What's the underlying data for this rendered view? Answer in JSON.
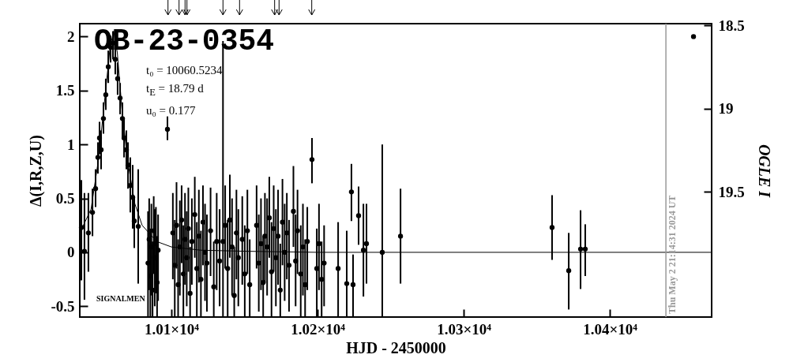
{
  "chart_data": {
    "type": "scatter",
    "title": "OB-23-0354",
    "xlabel": "HJD - 2450000",
    "ylabel": "Δ(I,R,Z,U)",
    "y2label": "OGLE I",
    "annotations": [
      "t₀ = 10060.5234",
      "t$_{E}$ = 18.79 d",
      "u₀ = 0.177",
      "SIGNALMEN",
      {
        "text": "Thu May  2 21:14:31 2024 UT",
        "x": 10438.4,
        "y": -0.6
      }
    ],
    "xlim": [
      10037.3,
      10469.7
    ],
    "xticks": [
      {
        "value": 10100,
        "label": "1.01×10⁴"
      },
      {
        "value": 10200,
        "label": "1.02×10⁴"
      },
      {
        "value": 10300,
        "label": "1.03×10⁴"
      },
      {
        "value": 10400,
        "label": "1.04×10⁴"
      }
    ],
    "ylim": [
      -0.6,
      2.12
    ],
    "yticks": [
      -0.5,
      0,
      0.5,
      1,
      1.5,
      2
    ],
    "y2lim": [
      20.25,
      18.49
    ],
    "y2ticks": [
      18.5,
      19,
      19.5
    ],
    "marker": "circle",
    "grid": false,
    "ref_lines": [
      {
        "axis": "x",
        "value": 10438.4,
        "color": "#999999"
      }
    ],
    "series": [
      {
        "type": "scatter",
        "color": "#000000",
        "x": [
          10038.4,
          10040.5,
          10043.2,
          10046.0,
          10048.1,
          10049.7,
          10050.8,
          10051.9,
          10053.5,
          10055.1,
          10056.8,
          10058.4,
          10060.0,
          10061.6,
          10063.2,
          10064.9,
          10066.5,
          10067.6,
          10069.2,
          10070.3,
          10071.9,
          10073.5,
          10074.6,
          10077.3,
          10084.0,
          10084.8,
          10085.6,
          10086.3,
          10087.1,
          10087.9,
          10088.6,
          10089.4,
          10090.2,
          10090.9,
          10097.3,
          10101.0,
          10102.3,
          10103.5,
          10104.6,
          10105.8,
          10107.0,
          10108.2,
          10109.3,
          10110.5,
          10111.6,
          10112.8,
          10114.0,
          10116.0,
          10117.4,
          10118.8,
          10120.2,
          10121.6,
          10123.0,
          10124.3,
          10126.8,
          10129.0,
          10131.0,
          10133.0,
          10135.3,
          10136.8,
          10138.5,
          10140.0,
          10141.5,
          10143.0,
          10144.5,
          10145.8,
          10148.5,
          10150.2,
          10152.0,
          10153.6,
          10158.3,
          10159.8,
          10161.3,
          10162.8,
          10164.0,
          10165.5,
          10167.0,
          10168.5,
          10170.0,
          10171.5,
          10173.0,
          10174.5,
          10176.0,
          10177.5,
          10179.0,
          10180.5,
          10183.5,
          10185.0,
          10186.3,
          10188.5,
          10190.0,
          10191.5,
          10193.0,
          10196.2,
          10199.5,
          10201.0,
          10202.8,
          10204.5,
          10214.1,
          10220.0,
          10223.2,
          10224.3,
          10228.1,
          10231.4,
          10233.5,
          10244.3,
          10256.8,
          10360.5,
          10371.9,
          10380.0,
          10383.2
        ],
        "values": [
          0.23,
          0.01,
          0.18,
          0.37,
          0.59,
          0.88,
          1.06,
          0.95,
          1.24,
          1.46,
          1.72,
          1.9,
          1.94,
          1.79,
          1.61,
          1.43,
          1.24,
          1.06,
          0.95,
          0.81,
          0.62,
          0.51,
          0.29,
          0.24,
          -0.1,
          0.12,
          -0.22,
          0.05,
          -0.35,
          0.2,
          -0.05,
          0.08,
          -0.28,
          0.02,
          1.14,
          0.18,
          -0.12,
          0.25,
          -0.3,
          0.05,
          0.3,
          -0.2,
          0.12,
          -0.05,
          0.22,
          -0.38,
          0.1,
          0.35,
          -0.15,
          0.15,
          -0.25,
          0.28,
          0.0,
          -0.1,
          0.2,
          -0.32,
          0.1,
          -0.08,
          0.1,
          0.25,
          -0.15,
          0.3,
          0.05,
          -0.4,
          0.18,
          -0.05,
          0.12,
          -0.2,
          0.2,
          -0.3,
          0.25,
          -0.1,
          0.08,
          -0.28,
          0.15,
          0.05,
          0.32,
          -0.18,
          0.22,
          -0.05,
          0.15,
          -0.35,
          0.28,
          0.0,
          0.18,
          -0.12,
          0.38,
          -0.08,
          0.2,
          -0.2,
          0.05,
          -0.3,
          0.1,
          0.86,
          -0.15,
          0.08,
          -0.25,
          -0.1,
          -0.15,
          -0.29,
          0.56,
          -0.3,
          0.34,
          0.02,
          0.08,
          0.0,
          0.15,
          0.23,
          -0.17,
          0.03,
          0.03
        ],
        "errors": [
          [
            -0.26,
            0.67
          ],
          [
            -0.44,
            0.55
          ],
          [
            -0.18,
            0.55
          ],
          [
            0.15,
            0.59
          ],
          [
            0.42,
            0.77
          ],
          [
            0.73,
            1.02
          ],
          [
            0.91,
            1.21
          ],
          [
            0.77,
            1.13
          ],
          [
            1.1,
            1.39
          ],
          [
            1.32,
            1.61
          ],
          [
            1.57,
            1.87
          ],
          [
            1.76,
            2.01
          ],
          [
            1.79,
            2.05
          ],
          [
            1.65,
            1.94
          ],
          [
            1.46,
            1.76
          ],
          [
            1.28,
            1.57
          ],
          [
            1.06,
            1.39
          ],
          [
            0.88,
            1.24
          ],
          [
            0.77,
            1.13
          ],
          [
            0.59,
            1.02
          ],
          [
            0.37,
            0.88
          ],
          [
            0.22,
            0.81
          ],
          [
            0.04,
            0.51
          ],
          [
            -0.29,
            0.77
          ],
          [
            -0.6,
            0.38
          ],
          [
            -0.35,
            0.5
          ],
          [
            -0.6,
            0.22
          ],
          [
            -0.4,
            0.45
          ],
          [
            -0.6,
            0.1
          ],
          [
            -0.2,
            0.52
          ],
          [
            -0.5,
            0.4
          ],
          [
            -0.38,
            0.42
          ],
          [
            -0.6,
            0.15
          ],
          [
            -0.45,
            0.35
          ],
          [
            1.04,
            1.26
          ],
          [
            -0.25,
            0.55
          ],
          [
            -0.6,
            0.3
          ],
          [
            -0.15,
            0.65
          ],
          [
            -0.6,
            0.12
          ],
          [
            -0.4,
            0.48
          ],
          [
            -0.1,
            0.62
          ],
          [
            -0.6,
            0.25
          ],
          [
            -0.3,
            0.55
          ],
          [
            -0.5,
            0.38
          ],
          [
            -0.18,
            0.6
          ],
          [
            -0.6,
            0.05
          ],
          [
            -0.3,
            0.5
          ],
          [
            -0.05,
            0.7
          ],
          [
            -0.6,
            0.28
          ],
          [
            -0.28,
            0.58
          ],
          [
            -0.6,
            0.2
          ],
          [
            -0.12,
            0.62
          ],
          [
            -0.45,
            0.45
          ],
          [
            -0.55,
            0.35
          ],
          [
            -0.22,
            0.6
          ],
          [
            -0.6,
            0.1
          ],
          [
            -0.35,
            0.55
          ],
          [
            -0.5,
            0.4
          ],
          [
            -0.6,
            1.96
          ],
          [
            -0.15,
            0.62
          ],
          [
            -0.6,
            0.3
          ],
          [
            -0.05,
            0.72
          ],
          [
            -0.4,
            0.5
          ],
          [
            -0.6,
            0.05
          ],
          [
            -0.25,
            0.58
          ],
          [
            -0.5,
            0.4
          ],
          [
            -0.3,
            0.52
          ],
          [
            -0.6,
            0.25
          ],
          [
            -0.2,
            0.58
          ],
          [
            -0.6,
            0.12
          ],
          [
            -0.15,
            0.62
          ],
          [
            -0.55,
            0.35
          ],
          [
            -0.35,
            0.5
          ],
          [
            -0.6,
            0.15
          ],
          [
            -0.28,
            0.55
          ],
          [
            -0.4,
            0.5
          ],
          [
            -0.05,
            0.7
          ],
          [
            -0.6,
            0.28
          ],
          [
            -0.18,
            0.62
          ],
          [
            -0.5,
            0.4
          ],
          [
            -0.3,
            0.58
          ],
          [
            -0.6,
            0.08
          ],
          [
            -0.12,
            0.68
          ],
          [
            -0.45,
            0.45
          ],
          [
            -0.25,
            0.55
          ],
          [
            -0.55,
            0.3
          ],
          [
            0.05,
            0.8
          ],
          [
            -0.5,
            0.35
          ],
          [
            -0.2,
            0.58
          ],
          [
            -0.6,
            0.25
          ],
          [
            -0.4,
            0.45
          ],
          [
            -0.6,
            0.12
          ],
          [
            -0.35,
            0.42
          ],
          [
            0.64,
            1.06
          ],
          [
            -0.6,
            0.22
          ],
          [
            -0.35,
            0.45
          ],
          [
            -0.6,
            0.1
          ],
          [
            -0.5,
            0.25
          ],
          [
            -0.6,
            0.28
          ],
          [
            -0.6,
            0.2
          ],
          [
            0.29,
            0.82
          ],
          [
            -0.6,
            -0.02
          ],
          [
            0.07,
            0.61
          ],
          [
            -0.41,
            0.45
          ],
          [
            -0.29,
            0.45
          ],
          [
            -0.6,
            1.0
          ],
          [
            -0.29,
            0.59
          ],
          [
            -0.07,
            0.53
          ],
          [
            -0.53,
            0.18
          ],
          [
            -0.34,
            0.39
          ],
          [
            -0.22,
            0.26
          ]
        ]
      },
      {
        "type": "line",
        "color": "#000000",
        "marker": "none",
        "x": [
          10037.3,
          10045,
          10050,
          10055,
          10058,
          10060.5,
          10063,
          10066,
          10070,
          10075,
          10080,
          10090,
          10100,
          10120,
          10150,
          10200,
          10469.7
        ],
        "values": [
          0.18,
          0.4,
          0.85,
          1.5,
          1.9,
          2.05,
          1.85,
          1.35,
          0.85,
          0.45,
          0.25,
          0.1,
          0.05,
          0.02,
          0.01,
          0,
          0
        ]
      },
      {
        "type": "scatter",
        "color": "#000000",
        "x": [
          10457.3
        ],
        "values": [
          2.0
        ]
      }
    ]
  }
}
